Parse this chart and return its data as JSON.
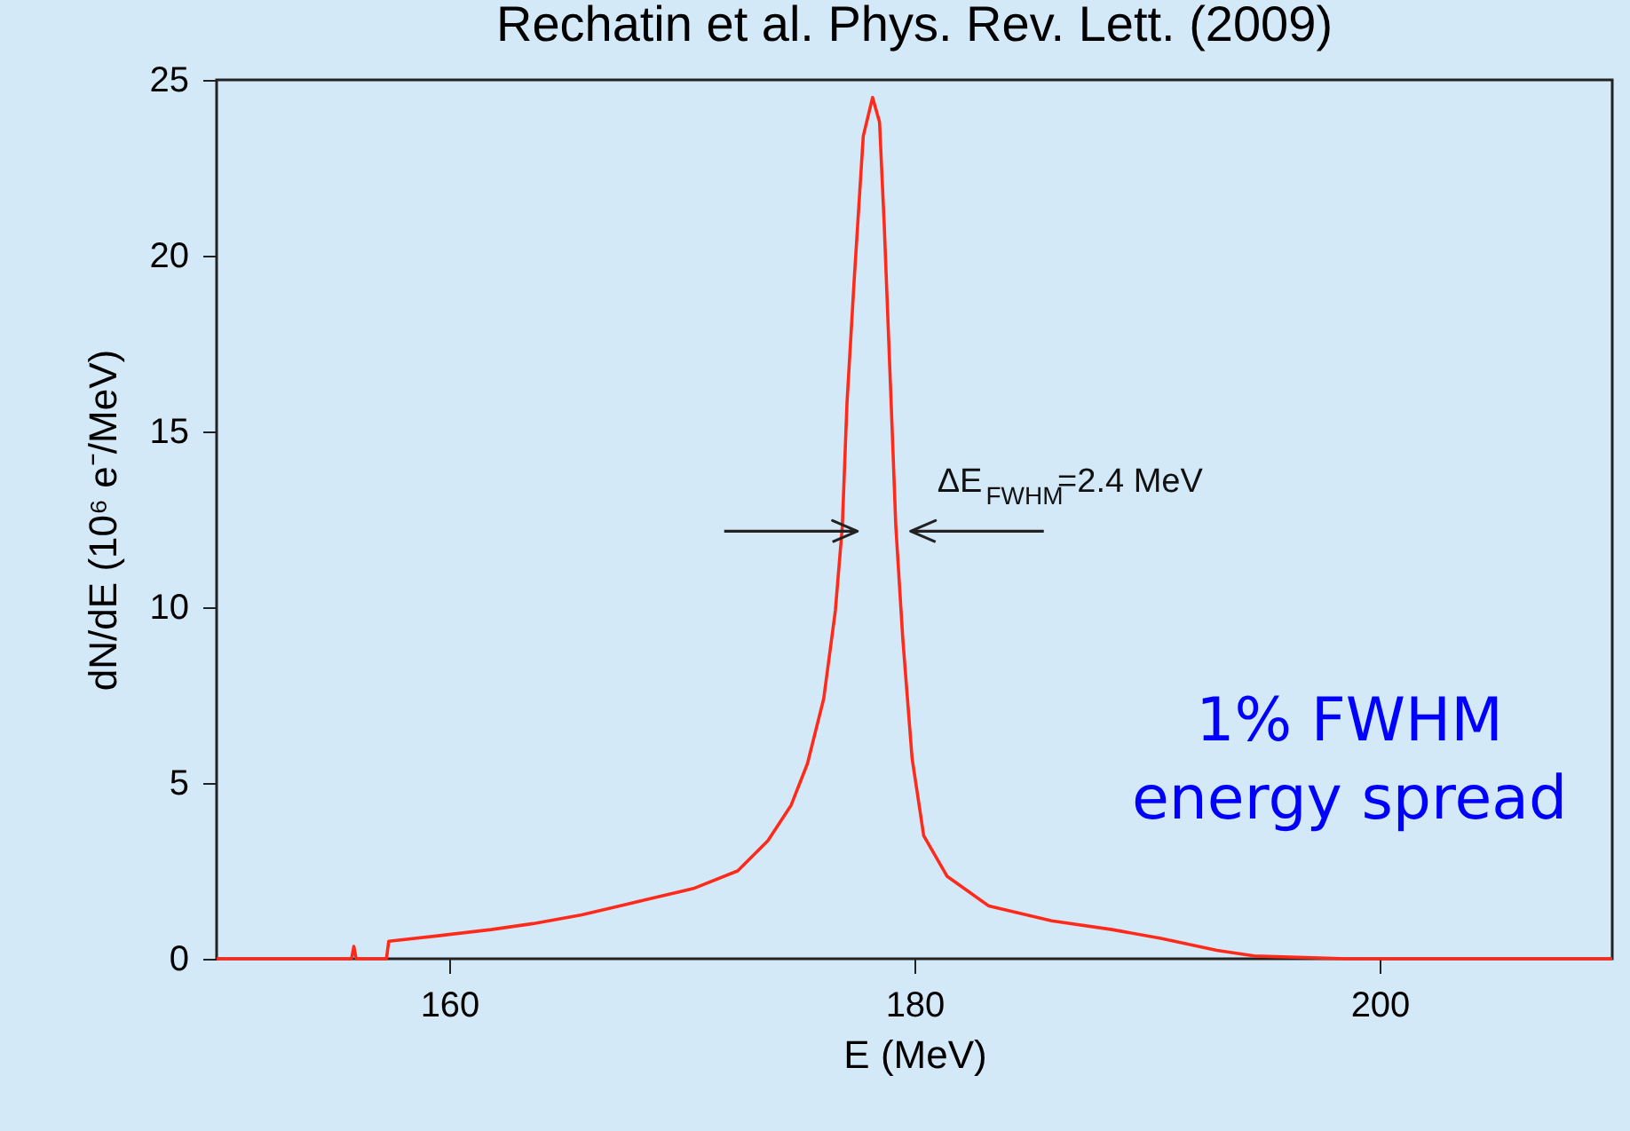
{
  "chart_data": {
    "type": "line",
    "title": "Rechatin et al. Phys. Rev. Lett. (2009)",
    "xlabel": "E (MeV)",
    "ylabel": "dN/dE (10⁶ e⁻/MeV)",
    "series": [
      {
        "color": "#ff2a1a",
        "x": [
          150,
          155.8,
          155.9,
          156.0,
          157.3,
          157.4,
          159.6,
          161.8,
          163.6,
          165.7,
          168.4,
          170.5,
          172.4,
          173.7,
          174.7,
          175.4,
          176.1,
          176.6,
          176.9,
          177.1,
          177.4,
          177.8,
          178.2,
          178.5,
          178.7,
          179.0,
          179.2,
          179.5,
          179.9,
          180.4,
          181.4,
          183.2,
          185.9,
          188.5,
          190.6,
          193.0,
          194.6,
          198.6,
          210
        ],
        "values": [
          0,
          0,
          0.35,
          0,
          0,
          0.5,
          0.66,
          0.83,
          1.0,
          1.25,
          1.67,
          2.0,
          2.5,
          3.36,
          4.37,
          5.55,
          7.4,
          9.9,
          12.3,
          15.8,
          19.2,
          23.4,
          24.5,
          23.8,
          20.9,
          15.8,
          12.3,
          9.1,
          5.7,
          3.5,
          2.35,
          1.5,
          1.08,
          0.83,
          0.58,
          0.24,
          0.08,
          0,
          0
        ]
      }
    ],
    "xlim": [
      150,
      210
    ],
    "xticks": [
      160,
      180,
      200
    ],
    "ylim": [
      0,
      25
    ],
    "yticks": [
      0,
      5,
      10,
      15,
      20,
      25
    ],
    "grid": false,
    "line_style": "solid",
    "marker": "none",
    "annotations": [
      "ΔE$_{FWHM}$=2.4 MeV",
      "1% FWHM\nenergy spread"
    ]
  }
}
